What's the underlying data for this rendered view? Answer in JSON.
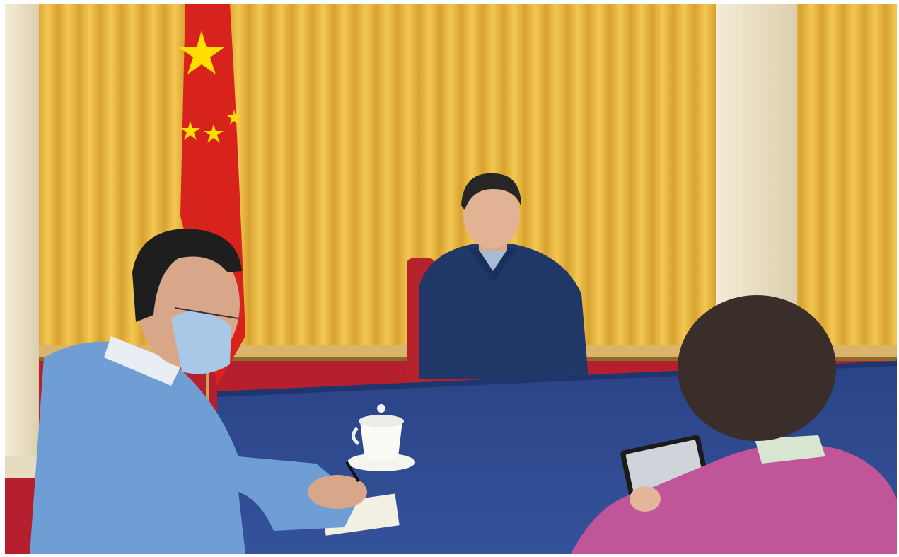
{
  "photo": {
    "subject": "photograph",
    "colors": {
      "curtain": "#E9B73C",
      "curtain_shadow": "#C8922A",
      "table": "#2F4A8E",
      "flag": "#D8231D",
      "star": "#FFDE00",
      "carpet": "#B51F2E",
      "pillar": "#EFE6CF",
      "blue_hoodie": "#6F9ED5",
      "pink_hoodie": "#C0559A",
      "jacket": "#1F3868"
    }
  }
}
